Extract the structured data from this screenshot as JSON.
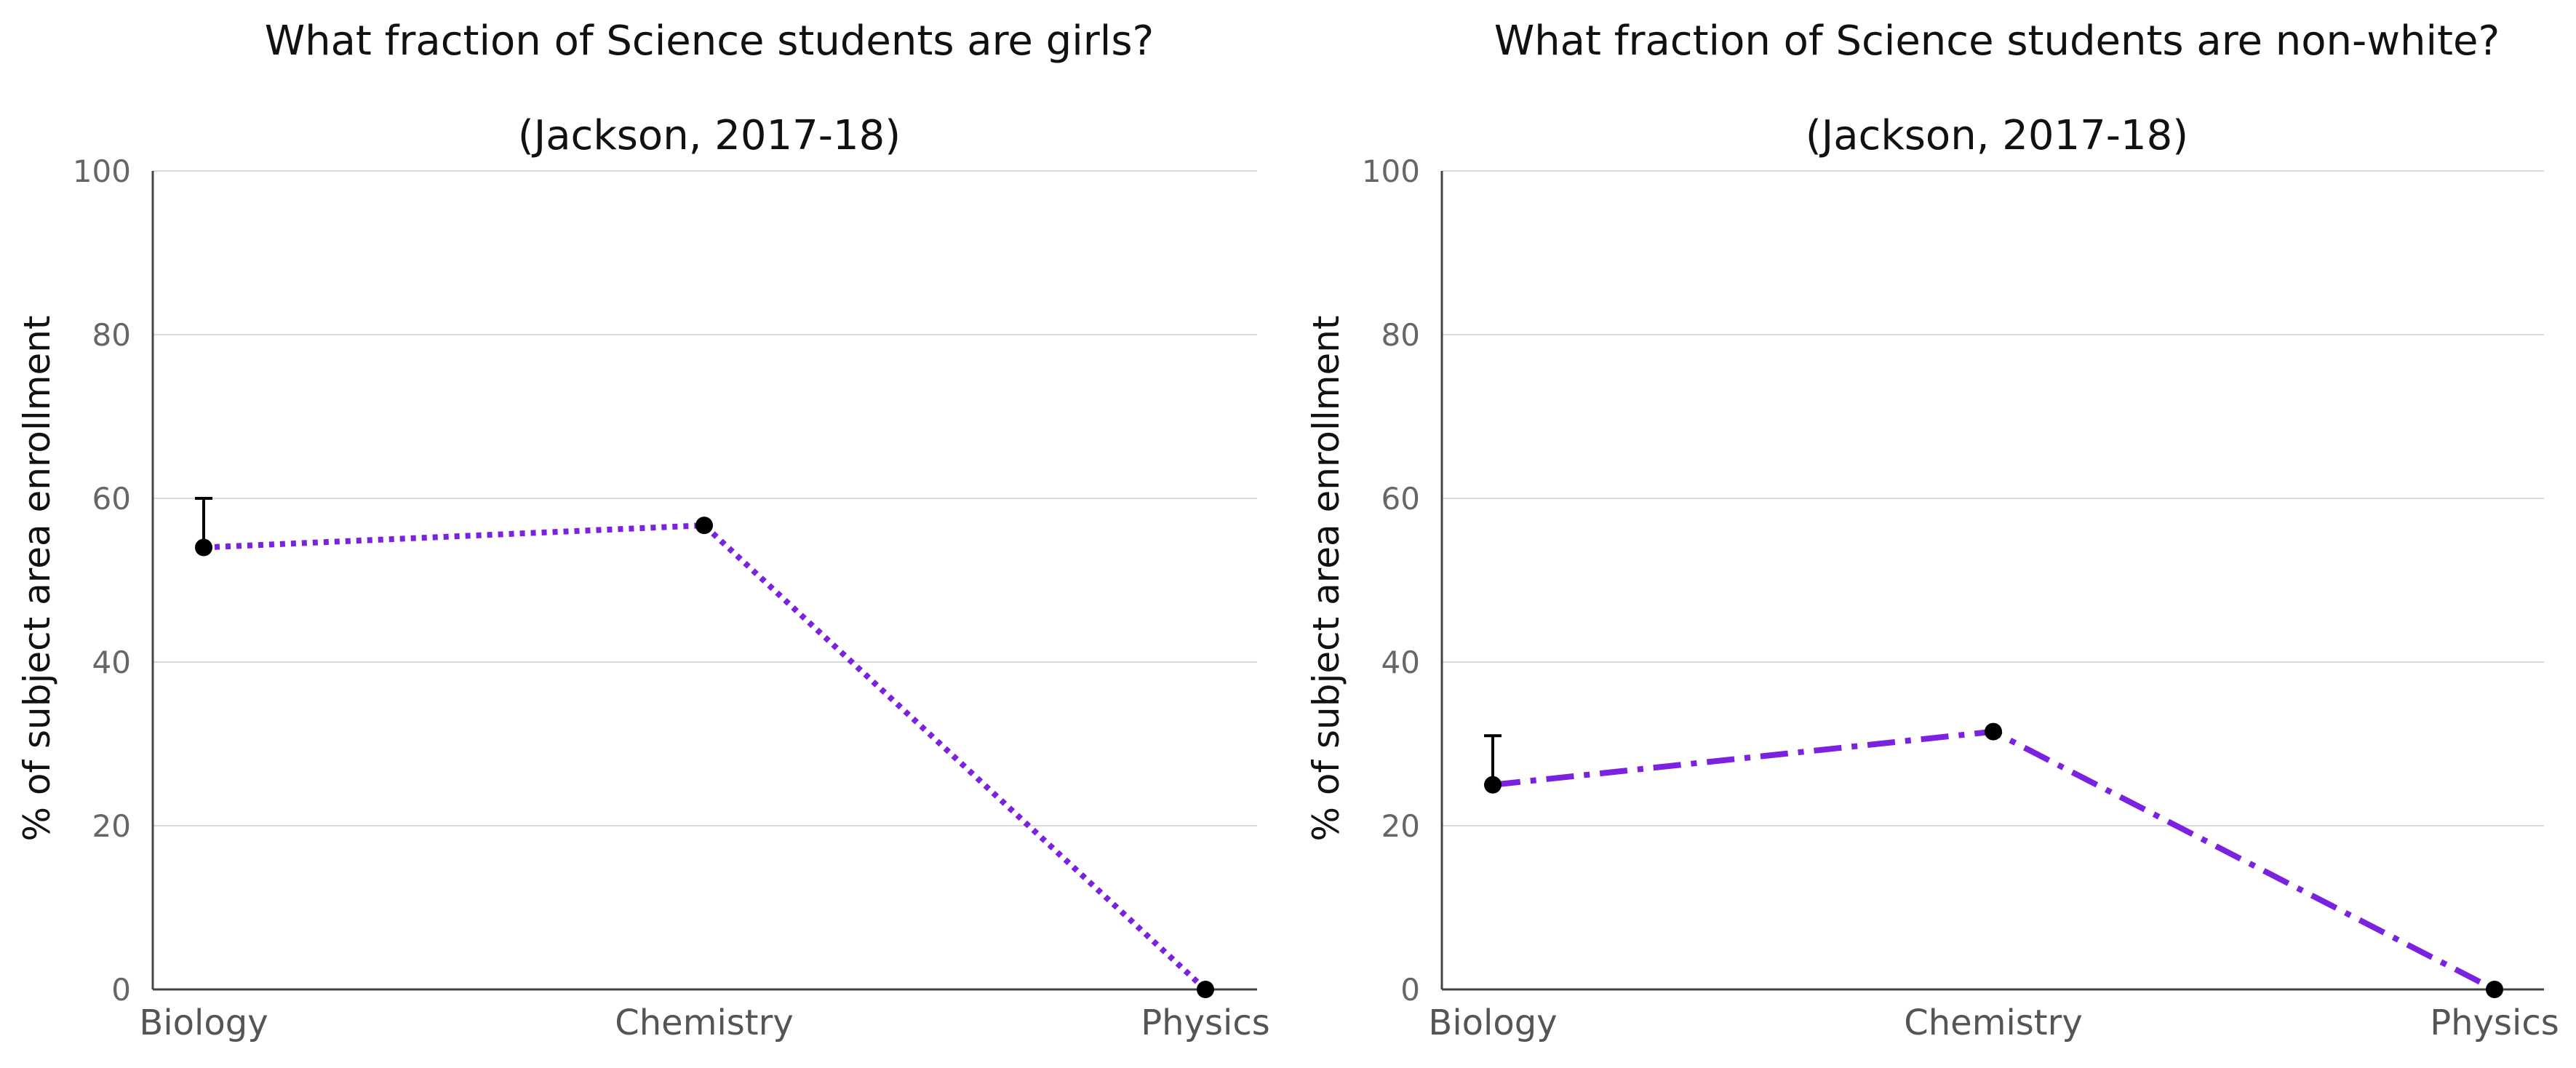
{
  "chart_data": [
    {
      "type": "line",
      "title": "What fraction of Science students are girls?",
      "subtitle": "(Jackson, 2017-18)",
      "ylabel": "% of subject area enrollment",
      "xlabel": "",
      "categories": [
        "Biology",
        "Chemistry",
        "Physics"
      ],
      "series": [
        {
          "values": [
            54,
            56.7,
            0
          ],
          "color": "#7a22e0",
          "dash": "dotted"
        }
      ],
      "error_bars": [
        {
          "category": "Biology",
          "upper": 60
        }
      ],
      "ylim": [
        0,
        100
      ],
      "yticks": [
        "0",
        "20",
        "40",
        "60",
        "80",
        "100"
      ],
      "grid": true
    },
    {
      "type": "line",
      "title": "What fraction of Science students are non-white?",
      "subtitle": "(Jackson, 2017-18)",
      "ylabel": "% of subject area enrollment",
      "xlabel": "",
      "categories": [
        "Biology",
        "Chemistry",
        "Physics"
      ],
      "series": [
        {
          "values": [
            25,
            31.5,
            0
          ],
          "color": "#7a22e0",
          "dash": "dashdot"
        }
      ],
      "error_bars": [
        {
          "category": "Biology",
          "upper": 31
        }
      ],
      "ylim": [
        0,
        100
      ],
      "yticks": [
        "0",
        "20",
        "40",
        "60",
        "80",
        "100"
      ],
      "grid": true
    }
  ]
}
